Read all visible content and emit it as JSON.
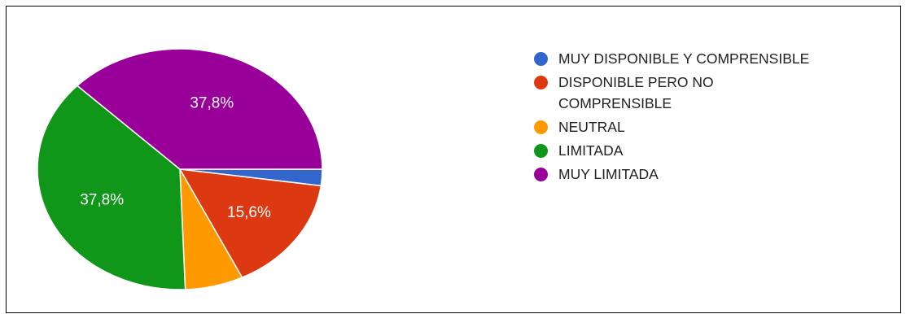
{
  "chart_data": {
    "type": "pie",
    "categories": [
      "MUY DISPONIBLE Y COMPRENSIBLE",
      "DISPONIBLE PERO NO COMPRENSIBLE",
      "NEUTRAL",
      "LIMITADA",
      "MUY LIMITADA"
    ],
    "values": [
      2.2,
      15.6,
      6.6,
      37.8,
      37.8
    ],
    "data_labels": [
      "",
      "15,6%",
      "",
      "37,8%",
      "37,8%"
    ],
    "colors": [
      "#3366cc",
      "#dc3912",
      "#ff9900",
      "#109618",
      "#990099"
    ],
    "start_angle_deg": 90,
    "direction": "clockwise",
    "legend_position": "right",
    "title": ""
  }
}
